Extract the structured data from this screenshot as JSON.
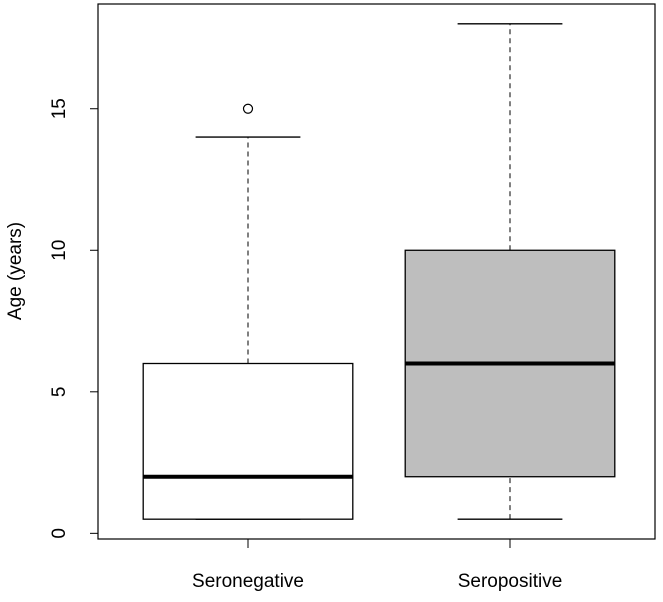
{
  "chart_data": {
    "type": "box",
    "ylabel": "Age (years)",
    "categories": [
      "Seronegative",
      "Seropositive"
    ],
    "boxes": [
      {
        "whisker_low": 0.5,
        "q1": 0.5,
        "median": 2,
        "q3": 6,
        "whisker_high": 14,
        "outliers": [
          15
        ],
        "color": "#ffffff"
      },
      {
        "whisker_low": 0.5,
        "q1": 2,
        "median": 6,
        "q3": 10,
        "whisker_high": 18,
        "outliers": [],
        "color": "#bebebe"
      }
    ],
    "ylim": [
      -0.2,
      18.7
    ],
    "yticks": [
      0,
      5,
      10,
      15
    ]
  }
}
